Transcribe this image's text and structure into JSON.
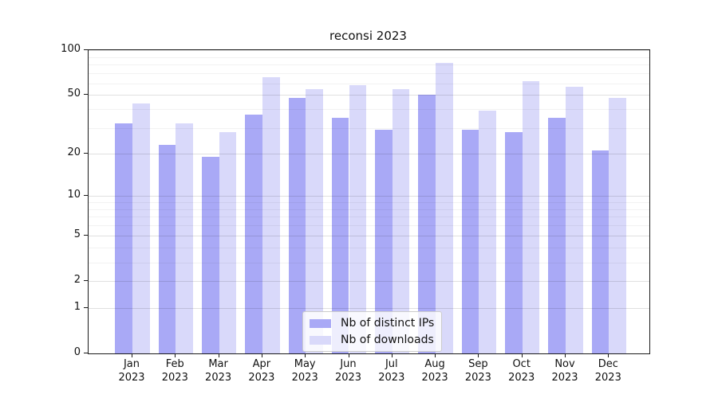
{
  "chart_data": {
    "type": "bar",
    "title": "reconsi 2023",
    "scale": "log1p",
    "ylim": [
      0,
      100
    ],
    "grid": true,
    "legend_position": "lower center",
    "categories": [
      "Jan",
      "Feb",
      "Mar",
      "Apr",
      "May",
      "Jun",
      "Jul",
      "Aug",
      "Sep",
      "Oct",
      "Nov",
      "Dec"
    ],
    "year_label": "2023",
    "y_major_ticks": [
      0,
      1,
      2,
      5,
      10,
      20,
      50,
      100
    ],
    "y_minor_ticks": [
      3,
      4,
      6,
      7,
      8,
      9,
      30,
      40,
      60,
      70,
      80,
      90
    ],
    "series": [
      {
        "name": "Nb of distinct IPs",
        "color": "#a9a9f6",
        "values": [
          32,
          23,
          19,
          37,
          48,
          35,
          29,
          50,
          29,
          28,
          35,
          21
        ]
      },
      {
        "name": "Nb of downloads",
        "color": "#d9d9fa",
        "values": [
          44,
          32,
          28,
          66,
          55,
          58,
          55,
          82,
          39,
          62,
          57,
          48
        ]
      }
    ]
  }
}
